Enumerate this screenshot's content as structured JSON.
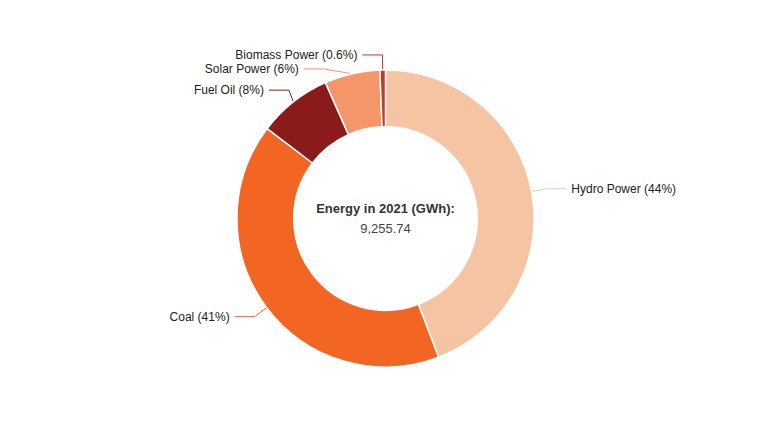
{
  "chart_data": {
    "type": "pie",
    "categories": [
      "Hydro Power (44%)",
      "Coal (41%)",
      "Fuel Oil (8%)",
      "Solar Power (6%)",
      "Biomass Power (0.6%)"
    ],
    "values": [
      44,
      41,
      8,
      6,
      0.6
    ],
    "colors": [
      "#F5C5A3",
      "#F26522",
      "#8B1A1A",
      "#F4956A",
      "#C0392B"
    ],
    "annotations": [
      "Energy in 2021 (GWh):",
      "9,255.74"
    ]
  }
}
